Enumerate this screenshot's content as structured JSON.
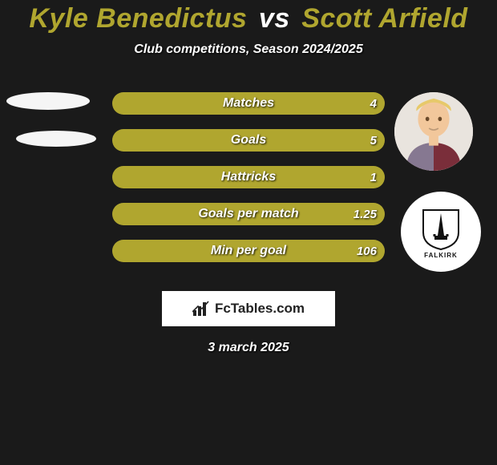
{
  "colors": {
    "background": "#1a1a1a",
    "title_left": "#b0a62f",
    "title_mid": "#ffffff",
    "title_right": "#b0a62f",
    "subtitle": "#ffffff",
    "bar_fill": "#b0a62f",
    "bar_text": "#ffffff",
    "footer_bg": "#ffffff",
    "footer_text": "#222222",
    "avatar_bg": "#e9e4de",
    "badge_bg": "#ffffff",
    "placeholder_bg": "#f5f5f5"
  },
  "title": {
    "left": "Kyle Benedictus",
    "mid": "vs",
    "right": "Scott Arfield",
    "fontsize": 34
  },
  "subtitle": "Club competitions, Season 2024/2025",
  "bars": {
    "height": 28,
    "gap": 18,
    "radius": 14,
    "label_fontsize": 16,
    "value_fontsize": 15,
    "rows": [
      {
        "label": "Matches",
        "left": "",
        "right": "4"
      },
      {
        "label": "Goals",
        "left": "",
        "right": "5"
      },
      {
        "label": "Hattricks",
        "left": "",
        "right": "1"
      },
      {
        "label": "Goals per match",
        "left": "",
        "right": "1.25"
      },
      {
        "label": "Min per goal",
        "left": "",
        "right": "106"
      }
    ]
  },
  "player_left": {
    "name": "Kyle Benedictus",
    "has_photo": false,
    "has_club_badge": false
  },
  "player_right": {
    "name": "Scott Arfield",
    "has_photo": true,
    "club_label": "FALKIRK"
  },
  "footer": {
    "brand": "FcTables.com",
    "icon": "bar-chart-icon"
  },
  "date": "3 march 2025"
}
